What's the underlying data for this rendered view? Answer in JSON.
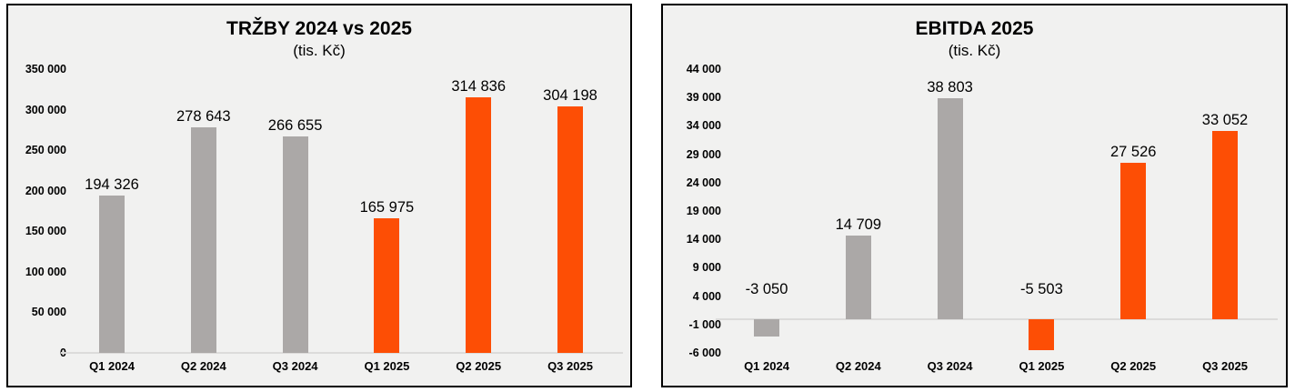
{
  "palette": {
    "bar_2024": "#ABA8A7",
    "bar_2025": "#FD4E05",
    "panel_background": "#F1F1F0",
    "panel_border": "#000000",
    "axis_line": "#DCDBDA",
    "text": "#000000"
  },
  "chart_data": [
    {
      "type": "bar",
      "title": "TRŽBY 2024 vs 2025",
      "subtitle": "(tis. Kč)",
      "categories": [
        "Q1 2024",
        "Q2 2024",
        "Q3 2024",
        "Q1 2025",
        "Q2 2025",
        "Q3 2025"
      ],
      "values": [
        194326,
        278643,
        266655,
        165975,
        314836,
        304198
      ],
      "value_labels": [
        "194 326",
        "278 643",
        "266 655",
        "165 975",
        "314 836",
        "304 198"
      ],
      "groups": [
        "2024",
        "2024",
        "2024",
        "2025",
        "2025",
        "2025"
      ],
      "ylim": [
        0,
        350000
      ],
      "yticks": [
        0,
        50000,
        100000,
        150000,
        200000,
        250000,
        300000,
        350000
      ],
      "ytick_labels": [
        "0",
        "50 000",
        "100 000",
        "150 000",
        "200 000",
        "250 000",
        "300 000",
        "350 000"
      ],
      "grid": false,
      "legend": false
    },
    {
      "type": "bar",
      "title": "EBITDA 2025",
      "subtitle": "(tis. Kč)",
      "categories": [
        "Q1 2024",
        "Q2 2024",
        "Q3 2024",
        "Q1 2025",
        "Q2 2025",
        "Q3 2025"
      ],
      "values": [
        -3050,
        14709,
        38803,
        -5503,
        27526,
        33052
      ],
      "value_labels": [
        "-3 050",
        "14 709",
        "38 803",
        "-5 503",
        "27 526",
        "33 052"
      ],
      "groups": [
        "2024",
        "2024",
        "2024",
        "2025",
        "2025",
        "2025"
      ],
      "ylim": [
        -6000,
        44000
      ],
      "yticks": [
        -6000,
        -1000,
        4000,
        9000,
        14000,
        19000,
        24000,
        29000,
        34000,
        39000,
        44000
      ],
      "ytick_labels": [
        "-6 000",
        "-1 000",
        "4 000",
        "9 000",
        "14 000",
        "19 000",
        "24 000",
        "29 000",
        "34 000",
        "39 000",
        "44 000"
      ],
      "grid": false,
      "legend": false
    }
  ]
}
